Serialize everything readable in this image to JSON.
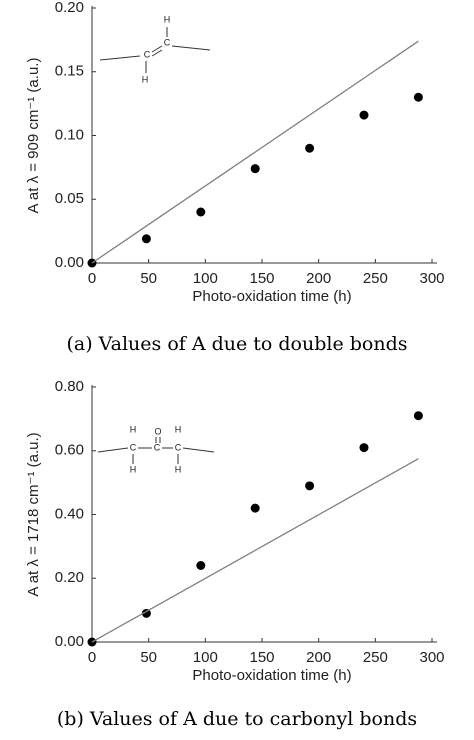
{
  "chart_data": [
    {
      "type": "scatter",
      "ylabel": "A at λ = 909 cm⁻¹ (a.u.)",
      "xlabel": "Photo-oxidation time (h)",
      "caption": "(a) Values of A due to double bonds",
      "inset_atoms": [
        "H",
        "C",
        "C",
        "H"
      ],
      "xlim": [
        0,
        300
      ],
      "xticks": [
        0,
        50,
        100,
        150,
        200,
        250,
        300
      ],
      "ylim": [
        0,
        0.2
      ],
      "yticks": [
        {
          "value": 0,
          "label": "0.00"
        },
        {
          "value": 0.05,
          "label": "0.05"
        },
        {
          "value": 0.1,
          "label": "0.10"
        },
        {
          "value": 0.15,
          "label": "0.15"
        },
        {
          "value": 0.2,
          "label": "0.20"
        }
      ],
      "series": [
        {
          "type": "scatter",
          "color": "#000000",
          "x": [
            0,
            48,
            96,
            144,
            192,
            240,
            288
          ],
          "values": [
            0,
            0.019,
            0.04,
            0.074,
            0.09,
            0.116,
            0.13
          ]
        },
        {
          "type": "line",
          "color": "#808080",
          "x": [
            0,
            288
          ],
          "values": [
            0,
            0.174
          ]
        }
      ]
    },
    {
      "type": "scatter",
      "ylabel": "A at λ = 1718 cm⁻¹ (a.u.)",
      "xlabel": "Photo-oxidation time (h)",
      "caption": "(b) Values of A due to carbonyl bonds",
      "inset_atoms": [
        "O",
        "H",
        "C",
        "C",
        "C",
        "H",
        "H",
        "H"
      ],
      "xlim": [
        0,
        300
      ],
      "xticks": [
        0,
        50,
        100,
        150,
        200,
        250,
        300
      ],
      "ylim": [
        0,
        0.8
      ],
      "yticks": [
        {
          "value": 0,
          "label": "0.00"
        },
        {
          "value": 0.2,
          "label": "0.20"
        },
        {
          "value": 0.4,
          "label": "0.40"
        },
        {
          "value": 0.6,
          "label": "0.60"
        },
        {
          "value": 0.8,
          "label": "0.80"
        }
      ],
      "series": [
        {
          "type": "scatter",
          "color": "#000000",
          "x": [
            0,
            48,
            96,
            144,
            192,
            240,
            288
          ],
          "values": [
            0,
            0.09,
            0.24,
            0.42,
            0.49,
            0.61,
            0.71
          ]
        },
        {
          "type": "line",
          "color": "#808080",
          "x": [
            0,
            288
          ],
          "values": [
            0,
            0.575
          ]
        }
      ]
    }
  ]
}
